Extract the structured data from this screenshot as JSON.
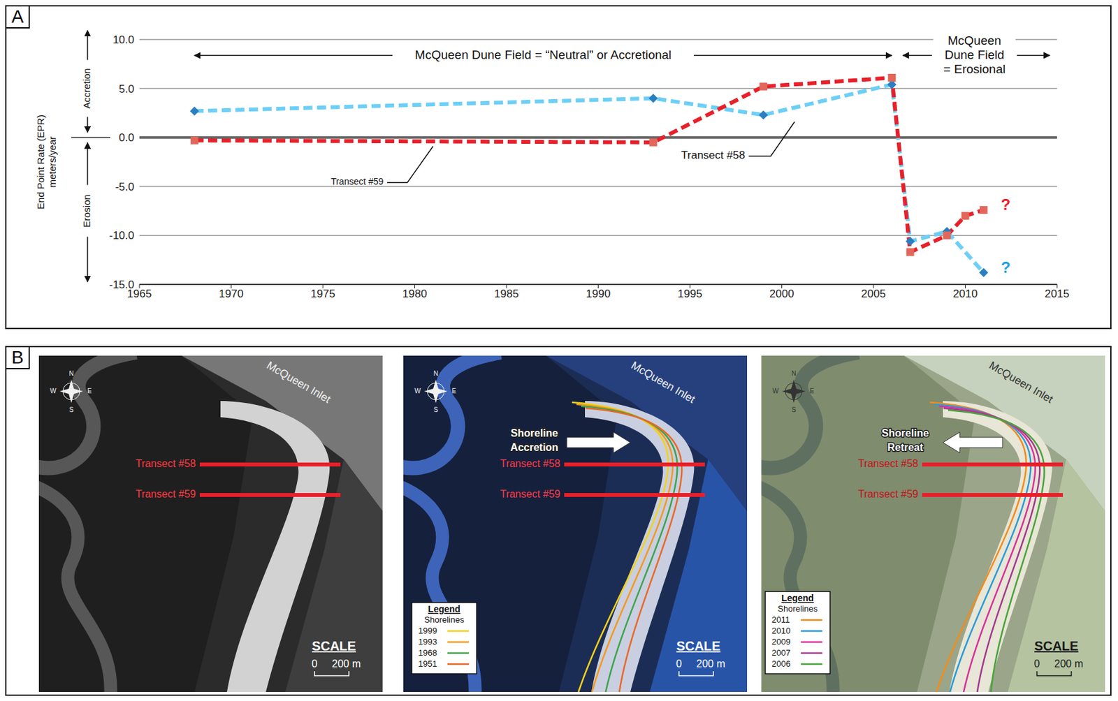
{
  "chart_data": {
    "type": "line",
    "panel": "A",
    "y_label": "End Point Rate (EPR) meters/year",
    "up_label": "Accretion",
    "down_label": "Erosion",
    "period_labels": [
      "McQueen Dune Field = “Neutral” or Accretional",
      "McQueen Dune Field = Erosional"
    ],
    "xlim": [
      1965,
      2015
    ],
    "xticks": [
      1965,
      1970,
      1975,
      1980,
      1985,
      1990,
      1995,
      2000,
      2005,
      2010,
      2015
    ],
    "ylim": [
      -15,
      10
    ],
    "yticks": [
      {
        "value": -15,
        "label": "-15.0"
      },
      {
        "value": -10,
        "label": "-10.0"
      },
      {
        "value": -5,
        "label": "-5.0"
      },
      {
        "value": 0,
        "label": "0.0"
      },
      {
        "value": 5,
        "label": "5.0"
      },
      {
        "value": 10,
        "label": "10.0"
      }
    ],
    "grid": true,
    "line_style": "dashed",
    "series": [
      {
        "name": "Transect #58",
        "color": "#6dcff6",
        "marker": "diamond",
        "end_label": "?",
        "x": [
          1968,
          1993,
          1999,
          2006,
          2007,
          2009,
          2011
        ],
        "values": [
          2.7,
          4.0,
          2.3,
          5.4,
          -10.6,
          -9.6,
          -13.8
        ]
      },
      {
        "name": "Transect #59",
        "color": "#e8202a",
        "marker": "square",
        "end_label": "?",
        "x": [
          1968,
          1993,
          1999,
          2006,
          2007,
          2009,
          2010,
          2011
        ],
        "values": [
          -0.3,
          -0.5,
          5.2,
          6.1,
          -11.7,
          -10.0,
          -8.0,
          -7.4
        ]
      }
    ]
  },
  "photo_panels": {
    "letter": "B",
    "images": [
      {
        "inlet_label": "McQueen Inlet",
        "compass": [
          "N",
          "E",
          "S",
          "W"
        ],
        "transects": [
          "Transect #58",
          "Transect #59"
        ],
        "scale": {
          "title": "SCALE",
          "zero": "0",
          "length": "200 m"
        }
      },
      {
        "inlet_label": "McQueen Inlet",
        "compass": [
          "N",
          "E",
          "S",
          "W"
        ],
        "transects": [
          "Transect #58",
          "Transect #59"
        ],
        "scale": {
          "title": "SCALE",
          "zero": "0",
          "length": "200 m"
        },
        "arrow_label": "Shoreline Accretion",
        "legend": {
          "title": "Legend",
          "subtitle": "Shorelines",
          "entries": [
            {
              "name": "1999",
              "color": "#f2d21b"
            },
            {
              "name": "1993",
              "color": "#f39a1e"
            },
            {
              "name": "1968",
              "color": "#3fa34d"
            },
            {
              "name": "1951",
              "color": "#e8692a"
            }
          ]
        }
      },
      {
        "inlet_label": "McQueen Inlet",
        "compass": [
          "N",
          "E",
          "S",
          "W"
        ],
        "transects": [
          "Transect #58",
          "Transect #59"
        ],
        "scale": {
          "title": "SCALE",
          "zero": "0",
          "length": "200 m"
        },
        "arrow_label": "Shoreline Retreat",
        "legend": {
          "title": "Legend",
          "subtitle": "Shorelines",
          "entries": [
            {
              "name": "2011",
              "color": "#f28c1c"
            },
            {
              "name": "2010",
              "color": "#2b9bd9"
            },
            {
              "name": "2009",
              "color": "#d8329c"
            },
            {
              "name": "2007",
              "color": "#a23a8e"
            },
            {
              "name": "2006",
              "color": "#4aa33f"
            }
          ]
        }
      }
    ]
  }
}
